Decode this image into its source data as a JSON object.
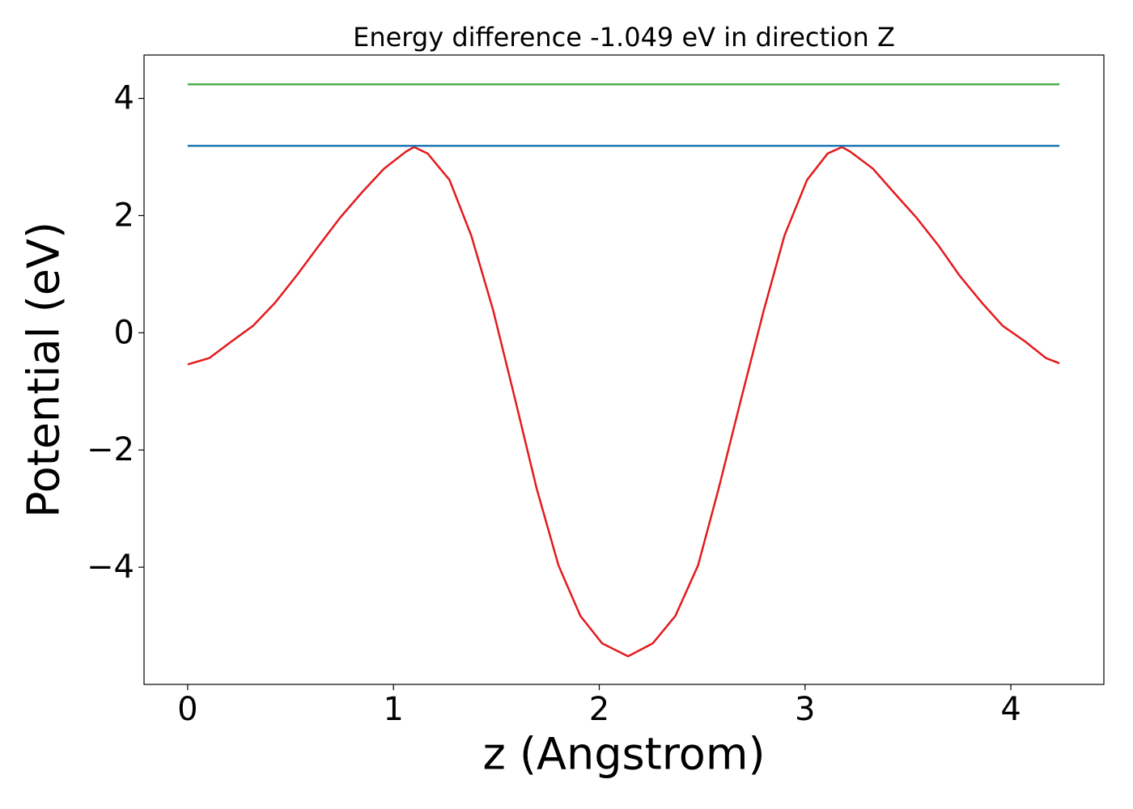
{
  "chart_data": {
    "type": "line",
    "title": "Energy difference -1.049 eV in direction Z",
    "x_label": "z (Angstrom)",
    "y_label": "Potential (eV)",
    "xlim": [
      -0.212,
      4.452
    ],
    "ylim": [
      -6.0,
      4.74
    ],
    "xticks": [
      0,
      1,
      2,
      3,
      4
    ],
    "yticks": [
      {
        "value": -4,
        "label": "−4"
      },
      {
        "value": -2,
        "label": "−2"
      },
      0,
      2,
      4
    ],
    "series": [
      {
        "color": "#e41a1c",
        "x": [
          0,
          0.106,
          0.212,
          0.318,
          0.424,
          0.53,
          0.636,
          0.742,
          0.848,
          0.954,
          1.06,
          1.1,
          1.166,
          1.272,
          1.378,
          1.484,
          1.59,
          1.696,
          1.802,
          1.908,
          2.014,
          2.14,
          2.26,
          2.37,
          2.48,
          2.58,
          2.69,
          2.8,
          2.9,
          3.01,
          3.11,
          3.18,
          3.22,
          3.33,
          3.43,
          3.54,
          3.65,
          3.75,
          3.86,
          3.96,
          4.07,
          4.17,
          4.236
        ],
        "values": [
          -0.54,
          -0.43,
          -0.15,
          0.12,
          0.51,
          0.98,
          1.48,
          1.97,
          2.4,
          2.8,
          3.09,
          3.17,
          3.06,
          2.61,
          1.66,
          0.39,
          -1.12,
          -2.66,
          -3.97,
          -4.83,
          -5.3,
          -5.52,
          -5.3,
          -4.83,
          -3.97,
          -2.66,
          -1.12,
          0.39,
          1.66,
          2.61,
          3.06,
          3.17,
          3.09,
          2.8,
          2.4,
          1.97,
          1.48,
          0.98,
          0.51,
          0.12,
          -0.15,
          -0.43,
          -0.52
        ]
      },
      {
        "color": "#1f77b4",
        "x": [
          0,
          4.236
        ],
        "values": [
          3.19,
          3.19
        ]
      },
      {
        "color": "#4daf4a",
        "x": [
          0,
          4.236
        ],
        "values": [
          4.24,
          4.24
        ]
      }
    ]
  }
}
